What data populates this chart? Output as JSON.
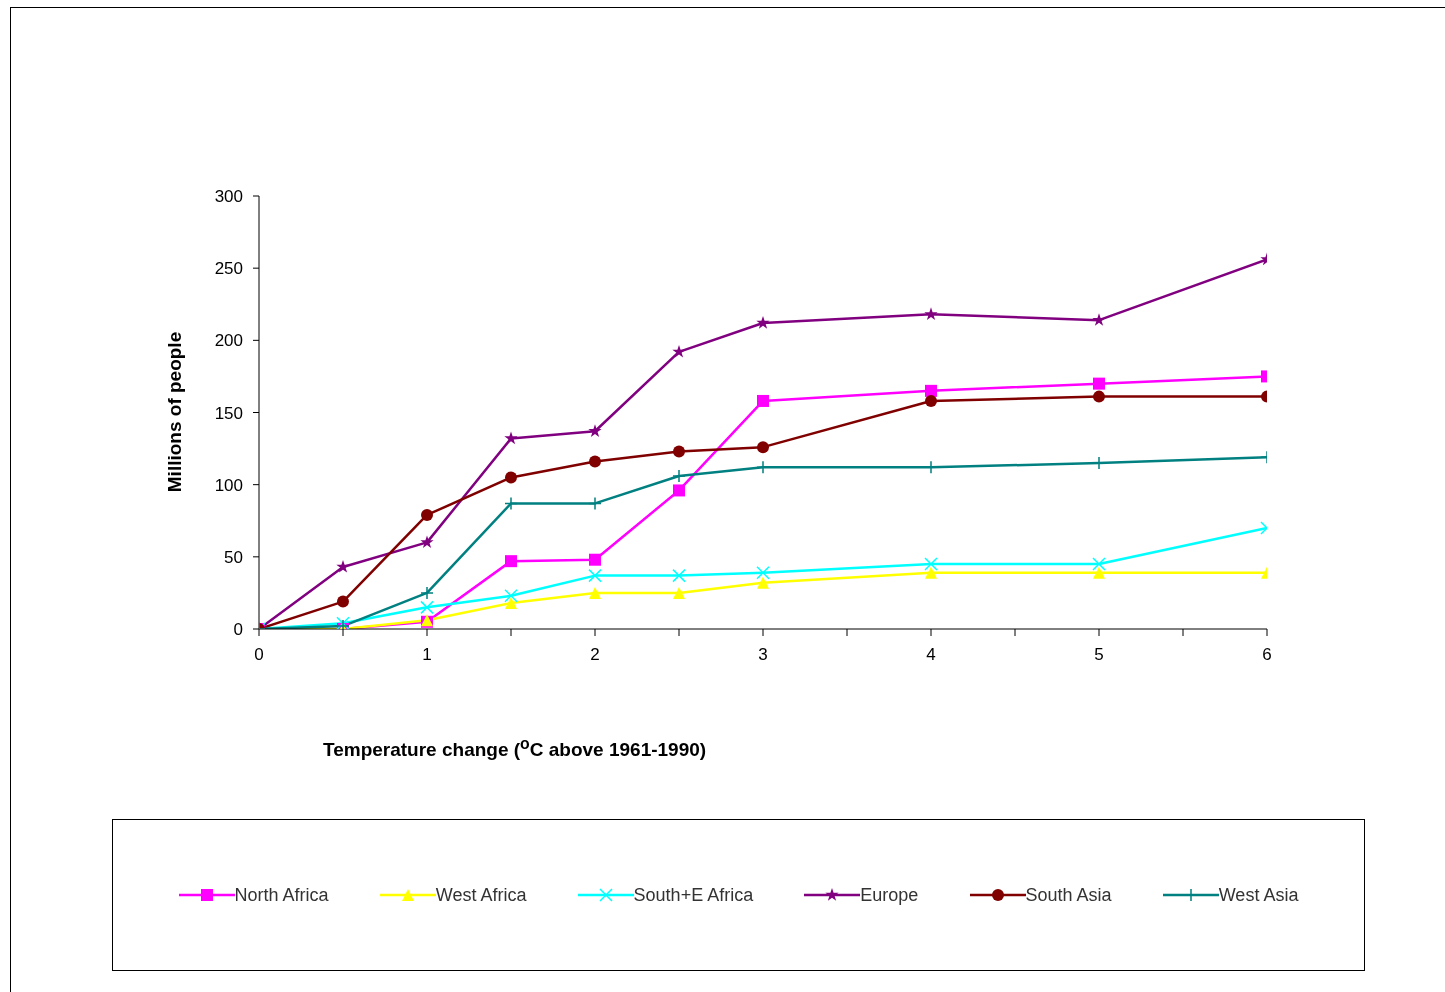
{
  "chart_data": {
    "type": "line",
    "xlabel": "Temperature change ($^{o}$C above 1961-1990)",
    "ylabel": "Millions of people",
    "x": [
      0,
      0.5,
      1,
      1.5,
      2,
      2.5,
      3,
      4,
      5,
      6
    ],
    "xlim": [
      0,
      6
    ],
    "xticks": [
      0,
      {
        "value": 0.5,
        "label": null
      },
      1,
      {
        "value": 1.5,
        "label": null
      },
      2,
      {
        "value": 2.5,
        "label": null
      },
      3,
      {
        "value": 3.5,
        "label": null
      },
      4,
      {
        "value": 4.5,
        "label": null
      },
      5,
      {
        "value": 5.5,
        "label": null
      },
      6
    ],
    "ylim": [
      0,
      300
    ],
    "yticks": [
      0,
      50,
      100,
      150,
      200,
      250,
      300
    ],
    "legend": "bottom",
    "series": [
      {
        "name": "North Africa",
        "color": "#ff00ff",
        "marker": "square",
        "values": [
          0,
          0,
          5,
          47,
          48,
          96,
          158,
          165,
          170,
          175
        ]
      },
      {
        "name": "West Africa",
        "color": "#ffff00",
        "marker": "triangle",
        "values": [
          0,
          0,
          6,
          18,
          25,
          25,
          32,
          39,
          39,
          39
        ]
      },
      {
        "name": "South+E Africa",
        "color": "#00ffff",
        "marker": "cross",
        "values": [
          0,
          4,
          15,
          23,
          37,
          37,
          39,
          45,
          45,
          70
        ]
      },
      {
        "name": "Europe",
        "color": "#800080",
        "marker": "star",
        "values": [
          0,
          43,
          60,
          132,
          137,
          192,
          212,
          218,
          214,
          256
        ]
      },
      {
        "name": "South Asia",
        "color": "#800000",
        "marker": "circle",
        "values": [
          0,
          19,
          79,
          105,
          116,
          123,
          126,
          158,
          161,
          161
        ]
      },
      {
        "name": "West Asia",
        "color": "#008080",
        "marker": "plus",
        "values": [
          0,
          2,
          25,
          87,
          87,
          106,
          112,
          112,
          115,
          119
        ]
      }
    ]
  }
}
